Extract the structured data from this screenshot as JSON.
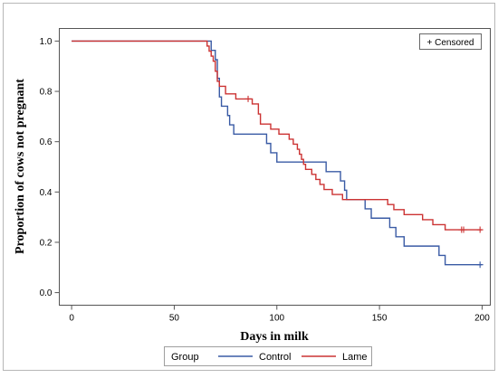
{
  "chart_data": {
    "type": "line",
    "step": true,
    "title": "",
    "xlabel": "Days in milk",
    "ylabel": "Proportion of cows not pregnant",
    "xlim": [
      -6,
      204
    ],
    "ylim": [
      -0.05,
      1.05
    ],
    "xticks": [
      0,
      50,
      100,
      150,
      200
    ],
    "xtick_labels": [
      "0",
      "50",
      "100",
      "150",
      "200"
    ],
    "yticks": [
      0.0,
      0.2,
      0.4,
      0.6,
      0.8,
      1.0
    ],
    "ytick_labels": [
      "0.0",
      "0.2",
      "0.4",
      "0.6",
      "0.8",
      "1.0"
    ],
    "grid": false,
    "inset_legend": {
      "text": "+ Censored",
      "placement": "top-right"
    },
    "legend": {
      "title": "Group",
      "placement": "bottom-center"
    },
    "series": [
      {
        "name": "Control",
        "color": "#3a5ba5",
        "points": [
          [
            0,
            1.0
          ],
          [
            67,
            1.0
          ],
          [
            68,
            0.963
          ],
          [
            70,
            0.926
          ],
          [
            71,
            0.852
          ],
          [
            72,
            0.778
          ],
          [
            73,
            0.741
          ],
          [
            76,
            0.704
          ],
          [
            77,
            0.667
          ],
          [
            79,
            0.63
          ],
          [
            95,
            0.593
          ],
          [
            97,
            0.556
          ],
          [
            100,
            0.519
          ],
          [
            122,
            0.519
          ],
          [
            124,
            0.481
          ],
          [
            131,
            0.444
          ],
          [
            133,
            0.407
          ],
          [
            134,
            0.37
          ],
          [
            141,
            0.37
          ],
          [
            143,
            0.333
          ],
          [
            146,
            0.296
          ],
          [
            155,
            0.259
          ],
          [
            158,
            0.222
          ],
          [
            162,
            0.185
          ],
          [
            179,
            0.148
          ],
          [
            182,
            0.111
          ],
          [
            200,
            0.111
          ]
        ],
        "censored": [
          [
            199,
            0.111
          ]
        ]
      },
      {
        "name": "Lame",
        "color": "#cc3333",
        "points": [
          [
            0,
            1.0
          ],
          [
            61,
            1.0
          ],
          [
            66,
            0.98
          ],
          [
            67,
            0.96
          ],
          [
            68,
            0.94
          ],
          [
            69,
            0.92
          ],
          [
            70,
            0.88
          ],
          [
            71,
            0.84
          ],
          [
            72,
            0.82
          ],
          [
            75,
            0.79
          ],
          [
            80,
            0.77
          ],
          [
            88,
            0.75
          ],
          [
            91,
            0.71
          ],
          [
            92,
            0.67
          ],
          [
            97,
            0.65
          ],
          [
            101,
            0.63
          ],
          [
            106,
            0.61
          ],
          [
            108,
            0.59
          ],
          [
            110,
            0.57
          ],
          [
            111,
            0.55
          ],
          [
            112,
            0.53
          ],
          [
            113,
            0.51
          ],
          [
            114,
            0.49
          ],
          [
            117,
            0.47
          ],
          [
            119,
            0.45
          ],
          [
            121,
            0.43
          ],
          [
            123,
            0.41
          ],
          [
            127,
            0.39
          ],
          [
            132,
            0.37
          ],
          [
            150,
            0.37
          ],
          [
            154,
            0.35
          ],
          [
            157,
            0.33
          ],
          [
            162,
            0.31
          ],
          [
            171,
            0.29
          ],
          [
            176,
            0.27
          ],
          [
            182,
            0.25
          ],
          [
            200,
            0.25
          ]
        ],
        "censored": [
          [
            86,
            0.77
          ],
          [
            190,
            0.25
          ],
          [
            191,
            0.25
          ],
          [
            199,
            0.25
          ]
        ]
      }
    ]
  }
}
